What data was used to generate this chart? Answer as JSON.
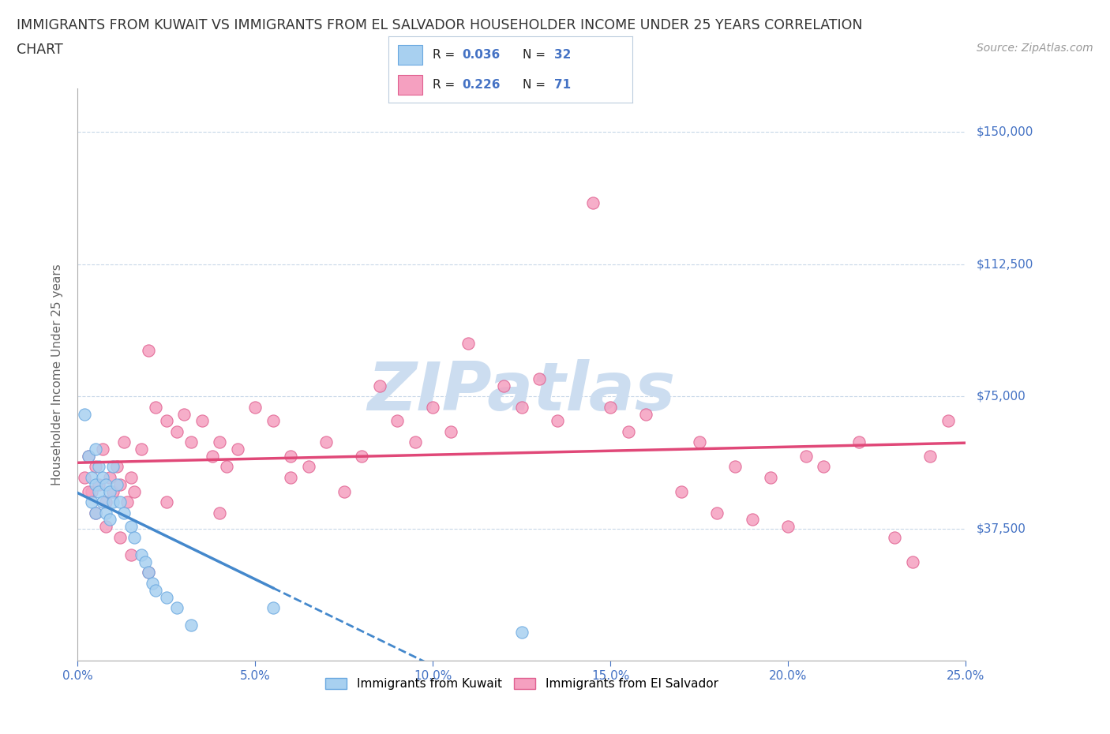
{
  "title_line1": "IMMIGRANTS FROM KUWAIT VS IMMIGRANTS FROM EL SALVADOR HOUSEHOLDER INCOME UNDER 25 YEARS CORRELATION",
  "title_line2": "CHART",
  "source_text": "Source: ZipAtlas.com",
  "ylabel": "Householder Income Under 25 years",
  "xmin": 0.0,
  "xmax": 0.25,
  "ymin": 0,
  "ymax": 162500,
  "yticks": [
    37500,
    75000,
    112500,
    150000
  ],
  "ytick_labels": [
    "$37,500",
    "$75,000",
    "$112,500",
    "$150,000"
  ],
  "xticks": [
    0.0,
    0.05,
    0.1,
    0.15,
    0.2,
    0.25
  ],
  "xtick_labels": [
    "0.0%",
    "5.0%",
    "10.0%",
    "15.0%",
    "20.0%",
    "25.0%"
  ],
  "kuwait_color": "#a8d0f0",
  "kuwait_edge": "#6aa8e0",
  "el_salvador_color": "#f5a0c0",
  "el_salvador_edge": "#e06090",
  "kuwait_R": 0.036,
  "kuwait_N": 32,
  "el_salvador_R": 0.226,
  "el_salvador_N": 71,
  "trend_kuwait_color": "#4488cc",
  "trend_el_salvador_color": "#e04878",
  "watermark": "ZIPatlas",
  "watermark_color": "#ccddf0",
  "background_color": "#ffffff",
  "grid_color": "#c8d8e8",
  "axis_label_color": "#4472c4",
  "legend_box_color": "#e8f0f8"
}
